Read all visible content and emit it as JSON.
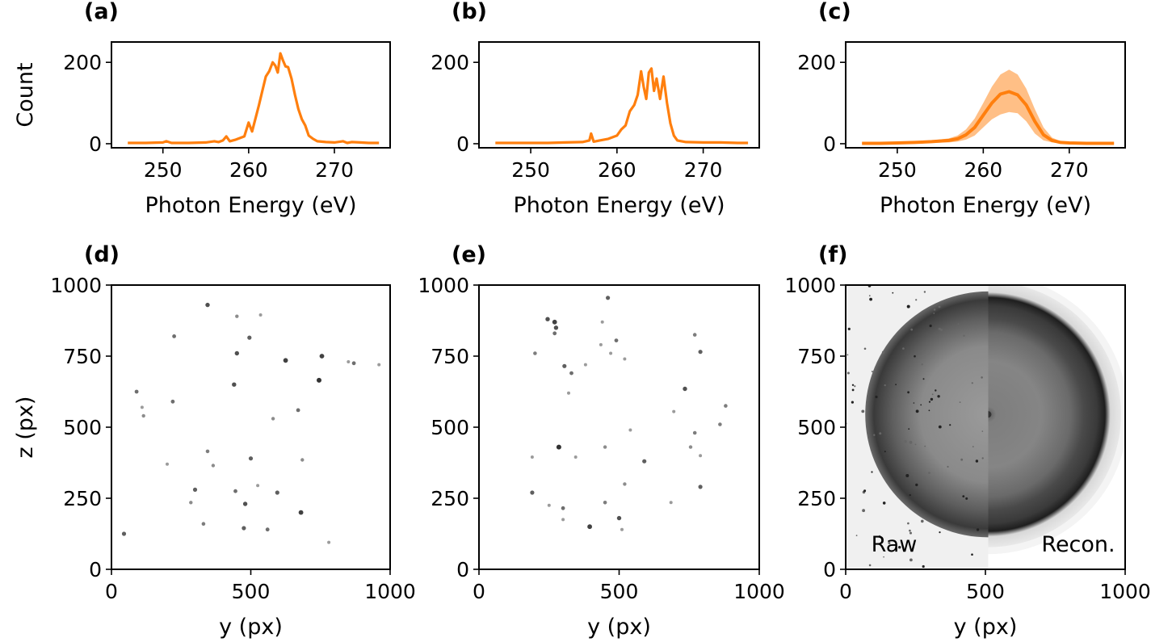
{
  "chart_data": [
    {
      "id": "a",
      "panel_label": "(a)",
      "type": "line",
      "xlabel": "Photon Energy (eV)",
      "ylabel": "Count",
      "xlim": [
        244,
        276.5
      ],
      "ylim": [
        -10,
        250
      ],
      "xticks": [
        250,
        260,
        270
      ],
      "yticks": [
        0,
        200
      ],
      "color": "#ff7f0e",
      "series": [
        {
          "x": [
            245.9,
            248,
            250,
            250.4,
            251,
            253,
            255,
            256,
            256.5,
            257,
            257.4,
            257.8,
            258.5,
            259.5,
            260,
            260.4,
            260.8,
            261.2,
            261.6,
            262,
            262.4,
            262.8,
            263.1,
            263.4,
            263.7,
            264,
            264.3,
            264.6,
            265,
            265.4,
            265.8,
            266.2,
            266.6,
            267,
            267.5,
            268,
            269,
            270,
            271,
            271.5,
            272,
            273,
            274,
            275.2
          ],
          "y": [
            2,
            2,
            3,
            6,
            2,
            2,
            3,
            6,
            4,
            8,
            18,
            6,
            10,
            18,
            52,
            30,
            62,
            95,
            130,
            165,
            178,
            200,
            192,
            175,
            222,
            205,
            190,
            188,
            160,
            120,
            85,
            60,
            45,
            20,
            12,
            6,
            4,
            3,
            6,
            2,
            4,
            3,
            2,
            2
          ]
        }
      ]
    },
    {
      "id": "b",
      "panel_label": "(b)",
      "type": "line",
      "xlabel": "Photon Energy (eV)",
      "ylabel": "",
      "xlim": [
        244,
        276.5
      ],
      "ylim": [
        -10,
        250
      ],
      "xticks": [
        250,
        260,
        270
      ],
      "yticks": [
        0,
        200
      ],
      "color": "#ff7f0e",
      "series": [
        {
          "x": [
            245.9,
            248,
            250,
            252,
            254,
            256,
            256.8,
            257,
            257.3,
            258,
            259,
            260,
            260.5,
            261,
            261.5,
            262,
            262.4,
            262.8,
            263.1,
            263.4,
            263.7,
            264,
            264.3,
            264.6,
            265,
            265.4,
            265.8,
            266.2,
            266.6,
            267,
            268,
            270,
            272,
            274,
            275.2
          ],
          "y": [
            2,
            2,
            2,
            2,
            3,
            4,
            8,
            25,
            5,
            8,
            12,
            20,
            35,
            45,
            80,
            95,
            120,
            178,
            140,
            110,
            175,
            185,
            130,
            160,
            110,
            165,
            100,
            50,
            20,
            8,
            4,
            3,
            3,
            2,
            2
          ]
        }
      ]
    },
    {
      "id": "c",
      "panel_label": "(c)",
      "type": "area",
      "xlabel": "Photon Energy (eV)",
      "ylabel": "",
      "xlim": [
        244,
        276.5
      ],
      "ylim": [
        -10,
        250
      ],
      "xticks": [
        250,
        260,
        270
      ],
      "yticks": [
        0,
        200
      ],
      "color": "#ff7f0e",
      "band_color": "#ffbf86",
      "series": [
        {
          "x": [
            245.9,
            248,
            250,
            252,
            254,
            256,
            257,
            258,
            259,
            260,
            261,
            262,
            263,
            264,
            265,
            266,
            267,
            268,
            269,
            270,
            272,
            275.2
          ],
          "mean": [
            1,
            1,
            2,
            3,
            5,
            8,
            12,
            22,
            40,
            70,
            100,
            122,
            128,
            120,
            95,
            55,
            22,
            8,
            3,
            2,
            1,
            1
          ],
          "lower": [
            0,
            0,
            1,
            1,
            2,
            3,
            5,
            10,
            20,
            40,
            60,
            72,
            78,
            75,
            55,
            25,
            8,
            3,
            1,
            0,
            0,
            0
          ],
          "upper": [
            2,
            2,
            3,
            5,
            8,
            13,
            20,
            35,
            62,
            100,
            140,
            170,
            182,
            170,
            135,
            85,
            40,
            15,
            6,
            3,
            2,
            2
          ]
        }
      ]
    },
    {
      "id": "d",
      "panel_label": "(d)",
      "type": "scatter",
      "xlabel": "y (px)",
      "ylabel": "z (px)",
      "xlim": [
        0,
        1000
      ],
      "ylim": [
        0,
        1000
      ],
      "xticks": [
        0,
        500,
        1000
      ],
      "yticks": [
        0,
        250,
        500,
        750,
        1000
      ],
      "points": [
        [
          345,
          930
        ],
        [
          450,
          890
        ],
        [
          535,
          895
        ],
        [
          225,
          820
        ],
        [
          495,
          815
        ],
        [
          450,
          760
        ],
        [
          625,
          735
        ],
        [
          755,
          750
        ],
        [
          850,
          730
        ],
        [
          870,
          725
        ],
        [
          960,
          720
        ],
        [
          440,
          650
        ],
        [
          745,
          665
        ],
        [
          90,
          625
        ],
        [
          110,
          570
        ],
        [
          220,
          590
        ],
        [
          115,
          540
        ],
        [
          580,
          530
        ],
        [
          670,
          560
        ],
        [
          685,
          385
        ],
        [
          345,
          415
        ],
        [
          365,
          365
        ],
        [
          500,
          390
        ],
        [
          200,
          370
        ],
        [
          300,
          280
        ],
        [
          285,
          235
        ],
        [
          445,
          275
        ],
        [
          525,
          295
        ],
        [
          595,
          270
        ],
        [
          480,
          230
        ],
        [
          330,
          160
        ],
        [
          475,
          145
        ],
        [
          560,
          140
        ],
        [
          680,
          200
        ],
        [
          780,
          95
        ],
        [
          45,
          125
        ]
      ],
      "intensity": [
        0.8,
        0.4,
        0.3,
        0.6,
        0.7,
        0.8,
        0.9,
        0.9,
        0.3,
        0.6,
        0.3,
        0.8,
        1.0,
        0.6,
        0.3,
        0.6,
        0.4,
        0.4,
        0.6,
        0.4,
        0.5,
        0.4,
        0.7,
        0.3,
        0.7,
        0.4,
        0.6,
        0.3,
        0.7,
        0.8,
        0.5,
        0.7,
        0.6,
        0.9,
        0.3,
        0.7
      ]
    },
    {
      "id": "e",
      "panel_label": "(e)",
      "type": "scatter",
      "xlabel": "y (px)",
      "ylabel": "",
      "xlim": [
        0,
        1000
      ],
      "ylim": [
        0,
        1000
      ],
      "xticks": [
        0,
        500,
        1000
      ],
      "yticks": [
        0,
        250,
        500,
        750,
        1000
      ],
      "points": [
        [
          460,
          955
        ],
        [
          245,
          880
        ],
        [
          270,
          870
        ],
        [
          275,
          850
        ],
        [
          440,
          870
        ],
        [
          270,
          830
        ],
        [
          490,
          805
        ],
        [
          770,
          825
        ],
        [
          435,
          790
        ],
        [
          470,
          760
        ],
        [
          520,
          740
        ],
        [
          200,
          760
        ],
        [
          790,
          765
        ],
        [
          305,
          715
        ],
        [
          330,
          690
        ],
        [
          380,
          720
        ],
        [
          735,
          635
        ],
        [
          320,
          620
        ],
        [
          880,
          575
        ],
        [
          695,
          555
        ],
        [
          770,
          480
        ],
        [
          860,
          510
        ],
        [
          450,
          430
        ],
        [
          285,
          430
        ],
        [
          540,
          490
        ],
        [
          755,
          430
        ],
        [
          790,
          400
        ],
        [
          590,
          380
        ],
        [
          190,
          395
        ],
        [
          520,
          300
        ],
        [
          790,
          290
        ],
        [
          190,
          270
        ],
        [
          450,
          235
        ],
        [
          685,
          235
        ],
        [
          250,
          225
        ],
        [
          300,
          215
        ],
        [
          300,
          175
        ],
        [
          500,
          180
        ],
        [
          395,
          150
        ],
        [
          510,
          140
        ],
        [
          345,
          395
        ]
      ],
      "intensity": [
        0.7,
        0.8,
        0.9,
        0.8,
        0.3,
        0.6,
        0.6,
        0.5,
        0.3,
        0.3,
        0.3,
        0.5,
        0.7,
        0.7,
        0.6,
        0.3,
        0.8,
        0.3,
        0.5,
        0.3,
        0.5,
        0.5,
        0.4,
        1.0,
        0.3,
        0.4,
        0.3,
        0.7,
        0.3,
        0.4,
        0.7,
        0.7,
        0.5,
        0.3,
        0.3,
        0.6,
        0.3,
        0.8,
        0.9,
        0.3,
        0.3
      ]
    },
    {
      "id": "f",
      "panel_label": "(f)",
      "type": "heatmap",
      "xlabel": "y (px)",
      "ylabel": "",
      "xlim": [
        0,
        1000
      ],
      "ylim": [
        0,
        1000
      ],
      "xticks": [
        0,
        500,
        1000
      ],
      "yticks": [
        0,
        250,
        500,
        750,
        1000
      ],
      "annotations": [
        "Raw",
        "Recon."
      ],
      "split_y": 510,
      "center": [
        510,
        545
      ],
      "ring_radius": 440,
      "ring_inner_radius": 300,
      "halo_radius": 500
    }
  ]
}
